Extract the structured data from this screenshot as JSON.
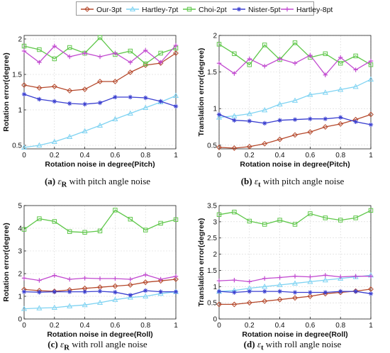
{
  "legend": {
    "items": [
      {
        "name": "Our-3pt",
        "color": "#b5482b",
        "marker": "diamond"
      },
      {
        "name": "Hartley-7pt",
        "color": "#7fd3f2",
        "marker": "triangle"
      },
      {
        "name": "Choi-2pt",
        "color": "#5fc74a",
        "marker": "square"
      },
      {
        "name": "Nister-5pt",
        "color": "#3a3fd0",
        "marker": "star"
      },
      {
        "name": "Hartley-8pt",
        "color": "#c24bd0",
        "marker": "plus"
      }
    ]
  },
  "captions": [
    {
      "label": "(a)",
      "symbol": "ε",
      "sub": "R",
      "text": "with pitch angle noise"
    },
    {
      "label": "(b)",
      "symbol": "ε",
      "sub": "t",
      "text": "with pitch angle noise"
    },
    {
      "label": "(c)",
      "symbol": "ε",
      "sub": "R",
      "text": "with roll angle noise"
    },
    {
      "label": "(d)",
      "symbol": "ε",
      "sub": "t",
      "text": "with roll angle noise"
    }
  ],
  "chart_data": [
    {
      "type": "line",
      "xlabel": "Rotation noise in degree(Pitch)",
      "ylabel": "Rotation error(degree)",
      "xlim": [
        0,
        1
      ],
      "ylim": [
        0.45,
        2.05
      ],
      "xticks": [
        0,
        0.2,
        0.4,
        0.6,
        0.8,
        1
      ],
      "yticks": [
        0.5,
        1,
        1.5,
        2
      ],
      "grid": true,
      "x": [
        0,
        0.1,
        0.2,
        0.3,
        0.4,
        0.5,
        0.6,
        0.7,
        0.8,
        0.9,
        1.0
      ],
      "series": [
        {
          "name": "Our-3pt",
          "values": [
            1.35,
            1.31,
            1.33,
            1.27,
            1.29,
            1.4,
            1.4,
            1.53,
            1.63,
            1.66,
            1.8
          ]
        },
        {
          "name": "Hartley-7pt",
          "values": [
            0.47,
            0.5,
            0.55,
            0.62,
            0.7,
            0.78,
            0.87,
            0.95,
            1.03,
            1.11,
            1.2
          ]
        },
        {
          "name": "Choi-2pt",
          "values": [
            1.9,
            1.85,
            1.72,
            1.88,
            1.8,
            2.02,
            1.78,
            1.83,
            1.65,
            1.8,
            1.87
          ]
        },
        {
          "name": "Nister-5pt",
          "values": [
            1.22,
            1.15,
            1.12,
            1.09,
            1.08,
            1.1,
            1.18,
            1.18,
            1.17,
            1.12,
            1.05
          ]
        },
        {
          "name": "Hartley-8pt",
          "values": [
            1.83,
            1.67,
            1.9,
            1.75,
            1.8,
            1.75,
            1.8,
            1.67,
            1.84,
            1.67,
            1.91
          ]
        }
      ]
    },
    {
      "type": "line",
      "xlabel": "Rotation noise in degree(Pitch)",
      "ylabel": "Translation error(degree)",
      "xlim": [
        0,
        1
      ],
      "ylim": [
        0.45,
        2.0
      ],
      "xticks": [
        0,
        0.2,
        0.4,
        0.6,
        0.8,
        1
      ],
      "yticks": [
        0.5,
        1,
        1.5,
        2
      ],
      "grid": true,
      "x": [
        0,
        0.1,
        0.2,
        0.3,
        0.4,
        0.5,
        0.6,
        0.7,
        0.8,
        0.9,
        1.0
      ],
      "series": [
        {
          "name": "Our-3pt",
          "values": [
            0.47,
            0.46,
            0.48,
            0.52,
            0.58,
            0.64,
            0.68,
            0.75,
            0.79,
            0.85,
            0.92
          ]
        },
        {
          "name": "Hartley-7pt",
          "values": [
            0.88,
            0.9,
            0.93,
            0.98,
            1.06,
            1.11,
            1.19,
            1.22,
            1.26,
            1.3,
            1.4
          ]
        },
        {
          "name": "Choi-2pt",
          "values": [
            1.88,
            1.75,
            1.6,
            1.87,
            1.67,
            1.9,
            1.7,
            1.75,
            1.62,
            1.72,
            1.6
          ]
        },
        {
          "name": "Nister-5pt",
          "values": [
            0.92,
            0.84,
            0.83,
            0.8,
            0.84,
            0.85,
            0.86,
            0.86,
            0.88,
            0.82,
            0.78
          ]
        },
        {
          "name": "Hartley-8pt",
          "values": [
            1.62,
            1.48,
            1.68,
            1.58,
            1.68,
            1.62,
            1.73,
            1.46,
            1.7,
            1.53,
            1.65
          ]
        }
      ]
    },
    {
      "type": "line",
      "xlabel": "Rotation noise in degree(Roll)",
      "ylabel": "Rotation error(degree)",
      "xlim": [
        0,
        1
      ],
      "ylim": [
        0,
        5
      ],
      "xticks": [
        0,
        0.2,
        0.4,
        0.6,
        0.8,
        1
      ],
      "yticks": [
        0,
        1,
        2,
        3,
        4,
        5
      ],
      "grid": true,
      "x": [
        0,
        0.1,
        0.2,
        0.3,
        0.4,
        0.5,
        0.6,
        0.7,
        0.8,
        0.9,
        1.0
      ],
      "series": [
        {
          "name": "Our-3pt",
          "values": [
            1.3,
            1.25,
            1.22,
            1.28,
            1.35,
            1.4,
            1.45,
            1.5,
            1.62,
            1.68,
            1.75
          ]
        },
        {
          "name": "Hartley-7pt",
          "values": [
            0.45,
            0.48,
            0.5,
            0.57,
            0.62,
            0.72,
            0.85,
            0.95,
            1.0,
            1.12,
            1.2
          ]
        },
        {
          "name": "Choi-2pt",
          "values": [
            3.95,
            4.42,
            4.3,
            3.85,
            3.82,
            3.88,
            4.8,
            4.4,
            3.92,
            4.22,
            4.38
          ]
        },
        {
          "name": "Nister-5pt",
          "values": [
            1.2,
            1.18,
            1.2,
            1.2,
            1.2,
            1.22,
            1.18,
            1.05,
            1.25,
            1.2,
            1.2
          ]
        },
        {
          "name": "Hartley-8pt",
          "values": [
            1.8,
            1.7,
            1.92,
            1.75,
            1.8,
            1.78,
            1.78,
            1.75,
            1.95,
            1.75,
            1.88
          ]
        }
      ]
    },
    {
      "type": "line",
      "xlabel": "Rotation noise in degree(Roll)",
      "ylabel": "Translation error(degree)",
      "xlim": [
        0,
        1
      ],
      "ylim": [
        0,
        3.5
      ],
      "xticks": [
        0,
        0.2,
        0.4,
        0.6,
        0.8,
        1
      ],
      "yticks": [
        0,
        0.5,
        1,
        1.5,
        2,
        2.5,
        3,
        3.5
      ],
      "grid": true,
      "x": [
        0,
        0.1,
        0.2,
        0.3,
        0.4,
        0.5,
        0.6,
        0.7,
        0.8,
        0.9,
        1.0
      ],
      "series": [
        {
          "name": "Our-3pt",
          "values": [
            0.45,
            0.45,
            0.5,
            0.55,
            0.6,
            0.65,
            0.7,
            0.78,
            0.82,
            0.86,
            0.92
          ]
        },
        {
          "name": "Hartley-7pt",
          "values": [
            0.85,
            0.88,
            0.95,
            1.0,
            1.05,
            1.1,
            1.15,
            1.2,
            1.25,
            1.3,
            1.35
          ]
        },
        {
          "name": "Choi-2pt",
          "values": [
            3.22,
            3.3,
            3.02,
            2.92,
            3.05,
            2.92,
            3.25,
            3.12,
            3.05,
            3.12,
            3.35
          ]
        },
        {
          "name": "Nister-5pt",
          "values": [
            0.85,
            0.82,
            0.85,
            0.85,
            0.85,
            0.82,
            0.82,
            0.82,
            0.85,
            0.85,
            0.78
          ]
        },
        {
          "name": "Hartley-8pt",
          "values": [
            1.18,
            1.2,
            1.15,
            1.25,
            1.28,
            1.32,
            1.3,
            1.35,
            1.3,
            1.32,
            1.32
          ]
        }
      ]
    }
  ]
}
